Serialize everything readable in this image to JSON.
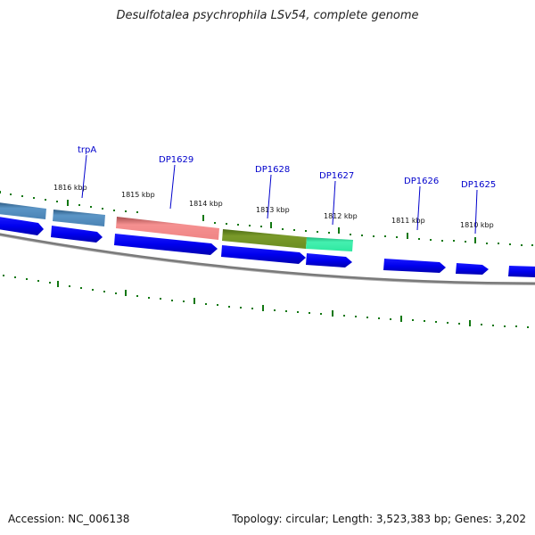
{
  "title": "Desulfotalea psychrophila LSv54, complete genome",
  "footer": {
    "accession": "Accession: NC_006138",
    "summary": "Topology: circular; Length: 3,523,383 bp; Genes: 3,202"
  },
  "kbp_labels": [
    "1816 kbp",
    "1815 kbp",
    "1814 kbp",
    "1813 kbp",
    "1812 kbp",
    "1811 kbp",
    "1810 kbp"
  ],
  "gene_labels": [
    "trpA",
    "DP1629",
    "DP1628",
    "DP1627",
    "DP1626",
    "DP1625"
  ],
  "colors": {
    "label_blue": "#0000cc",
    "cds_blue": "#0000ee",
    "tick_green": "#117711",
    "backbone_gray": "#7a7a7a",
    "feature_steelblue": "#4a83b4",
    "feature_salmon": "#ef8585",
    "feature_olive": "#6b8e23",
    "feature_mint": "#2ee8a0"
  }
}
